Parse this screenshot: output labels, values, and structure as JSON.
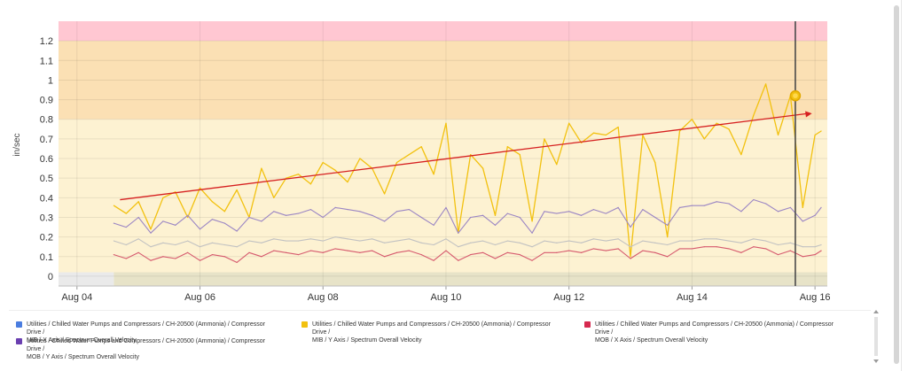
{
  "chart_data": {
    "type": "line",
    "ylabel": "in/sec",
    "ylim": [
      -0.05,
      1.3
    ],
    "yticks": [
      "0",
      "0.1",
      "0.2",
      "0.3",
      "0.4",
      "0.5",
      "0.6",
      "0.7",
      "0.8",
      "0.9",
      "1",
      "1.1",
      "1.2"
    ],
    "xticks": [
      "Aug 04",
      "Aug 06",
      "Aug 08",
      "Aug 10",
      "Aug 12",
      "Aug 14",
      "Aug 16"
    ],
    "xlim": [
      3.7,
      16.2
    ],
    "grid": true,
    "bands": [
      {
        "from": 1.2,
        "to": 1.3,
        "color": "#ffc7d2"
      },
      {
        "from": 0.8,
        "to": 1.2,
        "color": "#fbe0b4"
      },
      {
        "from": 0.0,
        "to": 0.8,
        "color": "#fdf2d2"
      },
      {
        "from": -0.05,
        "to": 0.02,
        "color": "#eaeaea"
      }
    ],
    "cursor_x": 15.68,
    "cursor_value": 0.92,
    "trend": {
      "x": [
        4.7,
        15.95
      ],
      "y": [
        0.39,
        0.83
      ],
      "color": "#d62020"
    },
    "series": [
      {
        "color": "#f2c10f",
        "x": [
          4.6,
          4.8,
          5.0,
          5.2,
          5.4,
          5.6,
          5.8,
          6.0,
          6.2,
          6.4,
          6.6,
          6.8,
          7.0,
          7.2,
          7.4,
          7.6,
          7.8,
          8.0,
          8.2,
          8.4,
          8.6,
          8.8,
          9.0,
          9.2,
          9.4,
          9.6,
          9.8,
          10.0,
          10.2,
          10.4,
          10.6,
          10.8,
          11.0,
          11.2,
          11.4,
          11.6,
          11.8,
          12.0,
          12.2,
          12.4,
          12.6,
          12.8,
          13.0,
          13.2,
          13.4,
          13.6,
          13.8,
          14.0,
          14.2,
          14.4,
          14.6,
          14.8,
          15.0,
          15.2,
          15.4,
          15.6,
          15.8,
          16.0,
          16.1
        ],
        "y": [
          0.36,
          0.32,
          0.38,
          0.24,
          0.4,
          0.43,
          0.3,
          0.45,
          0.38,
          0.33,
          0.44,
          0.3,
          0.55,
          0.4,
          0.5,
          0.52,
          0.47,
          0.58,
          0.54,
          0.48,
          0.6,
          0.55,
          0.42,
          0.58,
          0.62,
          0.66,
          0.52,
          0.78,
          0.22,
          0.62,
          0.55,
          0.31,
          0.66,
          0.62,
          0.28,
          0.7,
          0.57,
          0.78,
          0.68,
          0.73,
          0.72,
          0.76,
          0.1,
          0.72,
          0.58,
          0.2,
          0.74,
          0.8,
          0.7,
          0.78,
          0.75,
          0.62,
          0.82,
          0.98,
          0.72,
          0.92,
          0.35,
          0.72,
          0.74
        ]
      },
      {
        "color": "#9b86c4",
        "x": [
          4.6,
          4.8,
          5.0,
          5.2,
          5.4,
          5.6,
          5.8,
          6.0,
          6.2,
          6.4,
          6.6,
          6.8,
          7.0,
          7.2,
          7.4,
          7.6,
          7.8,
          8.0,
          8.2,
          8.4,
          8.6,
          8.8,
          9.0,
          9.2,
          9.4,
          9.6,
          9.8,
          10.0,
          10.2,
          10.4,
          10.6,
          10.8,
          11.0,
          11.2,
          11.4,
          11.6,
          11.8,
          12.0,
          12.2,
          12.4,
          12.6,
          12.8,
          13.0,
          13.2,
          13.4,
          13.6,
          13.8,
          14.0,
          14.2,
          14.4,
          14.6,
          14.8,
          15.0,
          15.2,
          15.4,
          15.6,
          15.8,
          16.0,
          16.1
        ],
        "y": [
          0.27,
          0.25,
          0.3,
          0.22,
          0.28,
          0.26,
          0.31,
          0.24,
          0.29,
          0.27,
          0.23,
          0.3,
          0.28,
          0.33,
          0.31,
          0.32,
          0.34,
          0.3,
          0.35,
          0.34,
          0.33,
          0.31,
          0.28,
          0.33,
          0.34,
          0.3,
          0.26,
          0.35,
          0.22,
          0.3,
          0.31,
          0.26,
          0.32,
          0.3,
          0.22,
          0.33,
          0.32,
          0.33,
          0.31,
          0.34,
          0.32,
          0.35,
          0.25,
          0.34,
          0.3,
          0.26,
          0.35,
          0.36,
          0.36,
          0.38,
          0.37,
          0.33,
          0.39,
          0.37,
          0.33,
          0.35,
          0.28,
          0.31,
          0.35
        ]
      },
      {
        "color": "#c2c2c2",
        "x": [
          4.6,
          4.8,
          5.0,
          5.2,
          5.4,
          5.6,
          5.8,
          6.0,
          6.2,
          6.4,
          6.6,
          6.8,
          7.0,
          7.2,
          7.4,
          7.6,
          7.8,
          8.0,
          8.2,
          8.4,
          8.6,
          8.8,
          9.0,
          9.2,
          9.4,
          9.6,
          9.8,
          10.0,
          10.2,
          10.4,
          10.6,
          10.8,
          11.0,
          11.2,
          11.4,
          11.6,
          11.8,
          12.0,
          12.2,
          12.4,
          12.6,
          12.8,
          13.0,
          13.2,
          13.4,
          13.6,
          13.8,
          14.0,
          14.2,
          14.4,
          14.6,
          14.8,
          15.0,
          15.2,
          15.4,
          15.6,
          15.8,
          16.0,
          16.1
        ],
        "y": [
          0.18,
          0.16,
          0.19,
          0.15,
          0.17,
          0.16,
          0.18,
          0.15,
          0.17,
          0.16,
          0.15,
          0.18,
          0.17,
          0.19,
          0.18,
          0.18,
          0.19,
          0.18,
          0.2,
          0.19,
          0.18,
          0.19,
          0.17,
          0.18,
          0.19,
          0.17,
          0.16,
          0.19,
          0.15,
          0.17,
          0.18,
          0.16,
          0.18,
          0.17,
          0.15,
          0.18,
          0.17,
          0.18,
          0.17,
          0.19,
          0.18,
          0.19,
          0.15,
          0.18,
          0.17,
          0.16,
          0.18,
          0.18,
          0.19,
          0.19,
          0.18,
          0.17,
          0.19,
          0.18,
          0.16,
          0.17,
          0.15,
          0.15,
          0.16
        ]
      },
      {
        "color": "#d65a6e",
        "x": [
          4.6,
          4.8,
          5.0,
          5.2,
          5.4,
          5.6,
          5.8,
          6.0,
          6.2,
          6.4,
          6.6,
          6.8,
          7.0,
          7.2,
          7.4,
          7.6,
          7.8,
          8.0,
          8.2,
          8.4,
          8.6,
          8.8,
          9.0,
          9.2,
          9.4,
          9.6,
          9.8,
          10.0,
          10.2,
          10.4,
          10.6,
          10.8,
          11.0,
          11.2,
          11.4,
          11.6,
          11.8,
          12.0,
          12.2,
          12.4,
          12.6,
          12.8,
          13.0,
          13.2,
          13.4,
          13.6,
          13.8,
          14.0,
          14.2,
          14.4,
          14.6,
          14.8,
          15.0,
          15.2,
          15.4,
          15.6,
          15.8,
          16.0,
          16.1
        ],
        "y": [
          0.11,
          0.09,
          0.12,
          0.08,
          0.1,
          0.09,
          0.12,
          0.08,
          0.11,
          0.1,
          0.07,
          0.12,
          0.1,
          0.13,
          0.12,
          0.11,
          0.13,
          0.12,
          0.14,
          0.13,
          0.12,
          0.13,
          0.1,
          0.12,
          0.13,
          0.11,
          0.08,
          0.13,
          0.08,
          0.11,
          0.12,
          0.09,
          0.12,
          0.11,
          0.08,
          0.12,
          0.12,
          0.13,
          0.12,
          0.14,
          0.13,
          0.14,
          0.09,
          0.13,
          0.12,
          0.1,
          0.14,
          0.14,
          0.15,
          0.15,
          0.14,
          0.12,
          0.15,
          0.14,
          0.11,
          0.13,
          0.1,
          0.11,
          0.13
        ]
      }
    ]
  },
  "legend": {
    "items": [
      {
        "color": "#4a7de0",
        "line1": "Utilities / Chilled Water Pumps and Compressors / CH-20500 (Ammonia) / Compressor Drive /",
        "line2": "MIB / X Axis / Spectrum Overall Velocity"
      },
      {
        "color": "#f2c10f",
        "line1": "Utilities / Chilled Water Pumps and Compressors / CH-20500 (Ammonia) / Compressor Drive /",
        "line2": "MIB / Y Axis / Spectrum Overall Velocity"
      },
      {
        "color": "#d6294f",
        "line1": "Utilities / Chilled Water Pumps and Compressors / CH-20500 (Ammonia) / Compressor Drive /",
        "line2": "MOB / X Axis / Spectrum Overall Velocity"
      },
      {
        "color": "#6a3fb0",
        "line1": "Utilities / Chilled Water Pumps and Compressors / CH-20500 (Ammonia) / Compressor Drive /",
        "line2": "MOB / Y Axis / Spectrum Overall Velocity"
      }
    ]
  }
}
